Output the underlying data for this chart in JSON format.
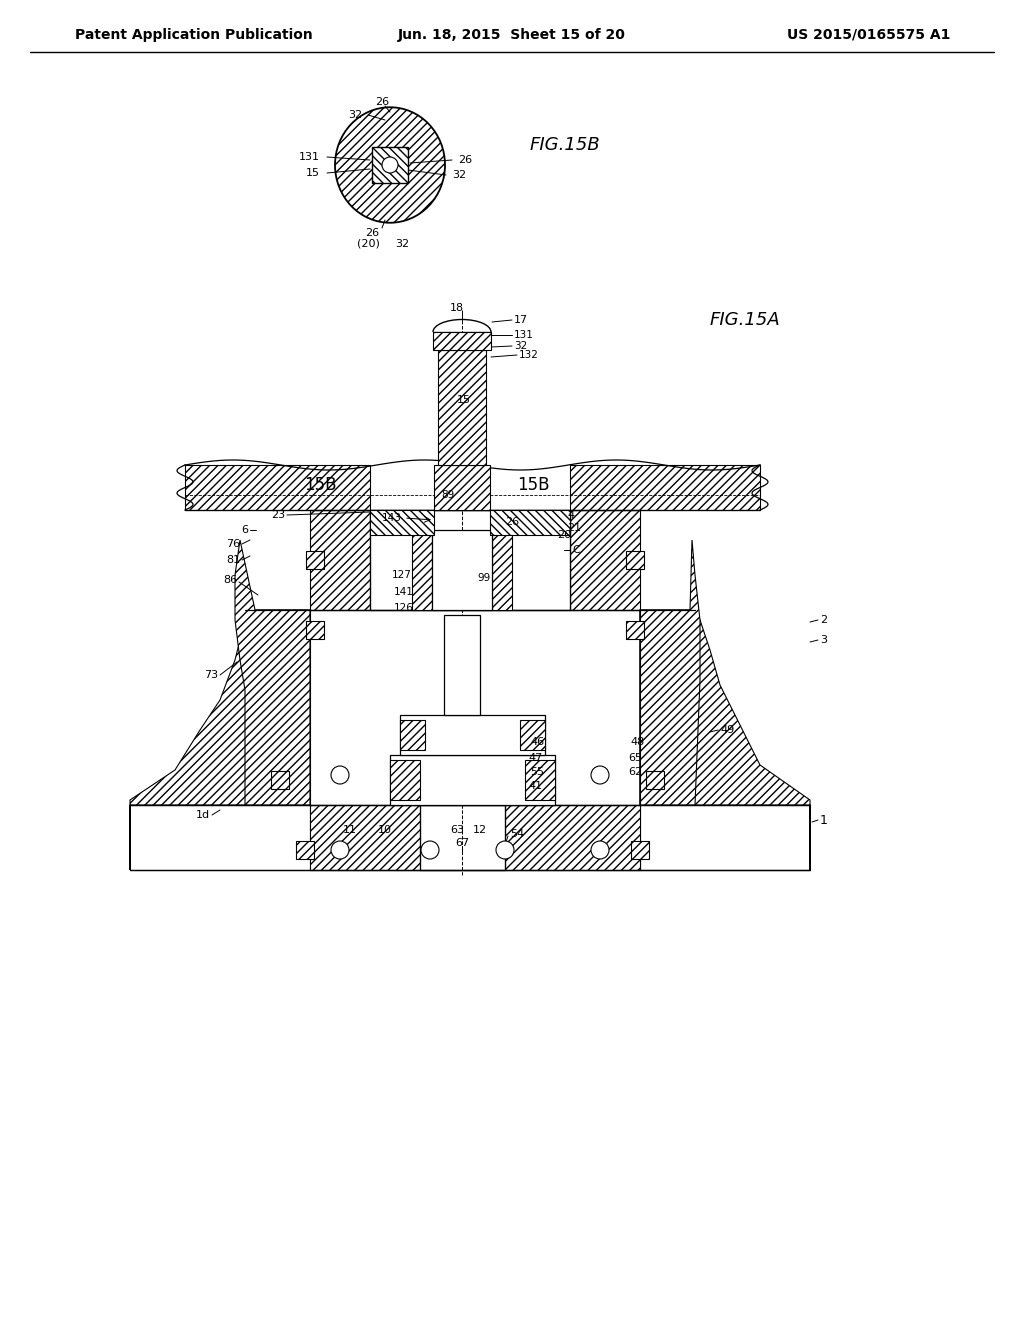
{
  "bg": "#ffffff",
  "header_left": "Patent Application Publication",
  "header_center": "Jun. 18, 2015  Sheet 15 of 20",
  "header_right": "US 2015/0165575 A1",
  "fig15b_title": "FIG.15B",
  "fig15a_title": "FIG.15A",
  "lc": "#000000"
}
